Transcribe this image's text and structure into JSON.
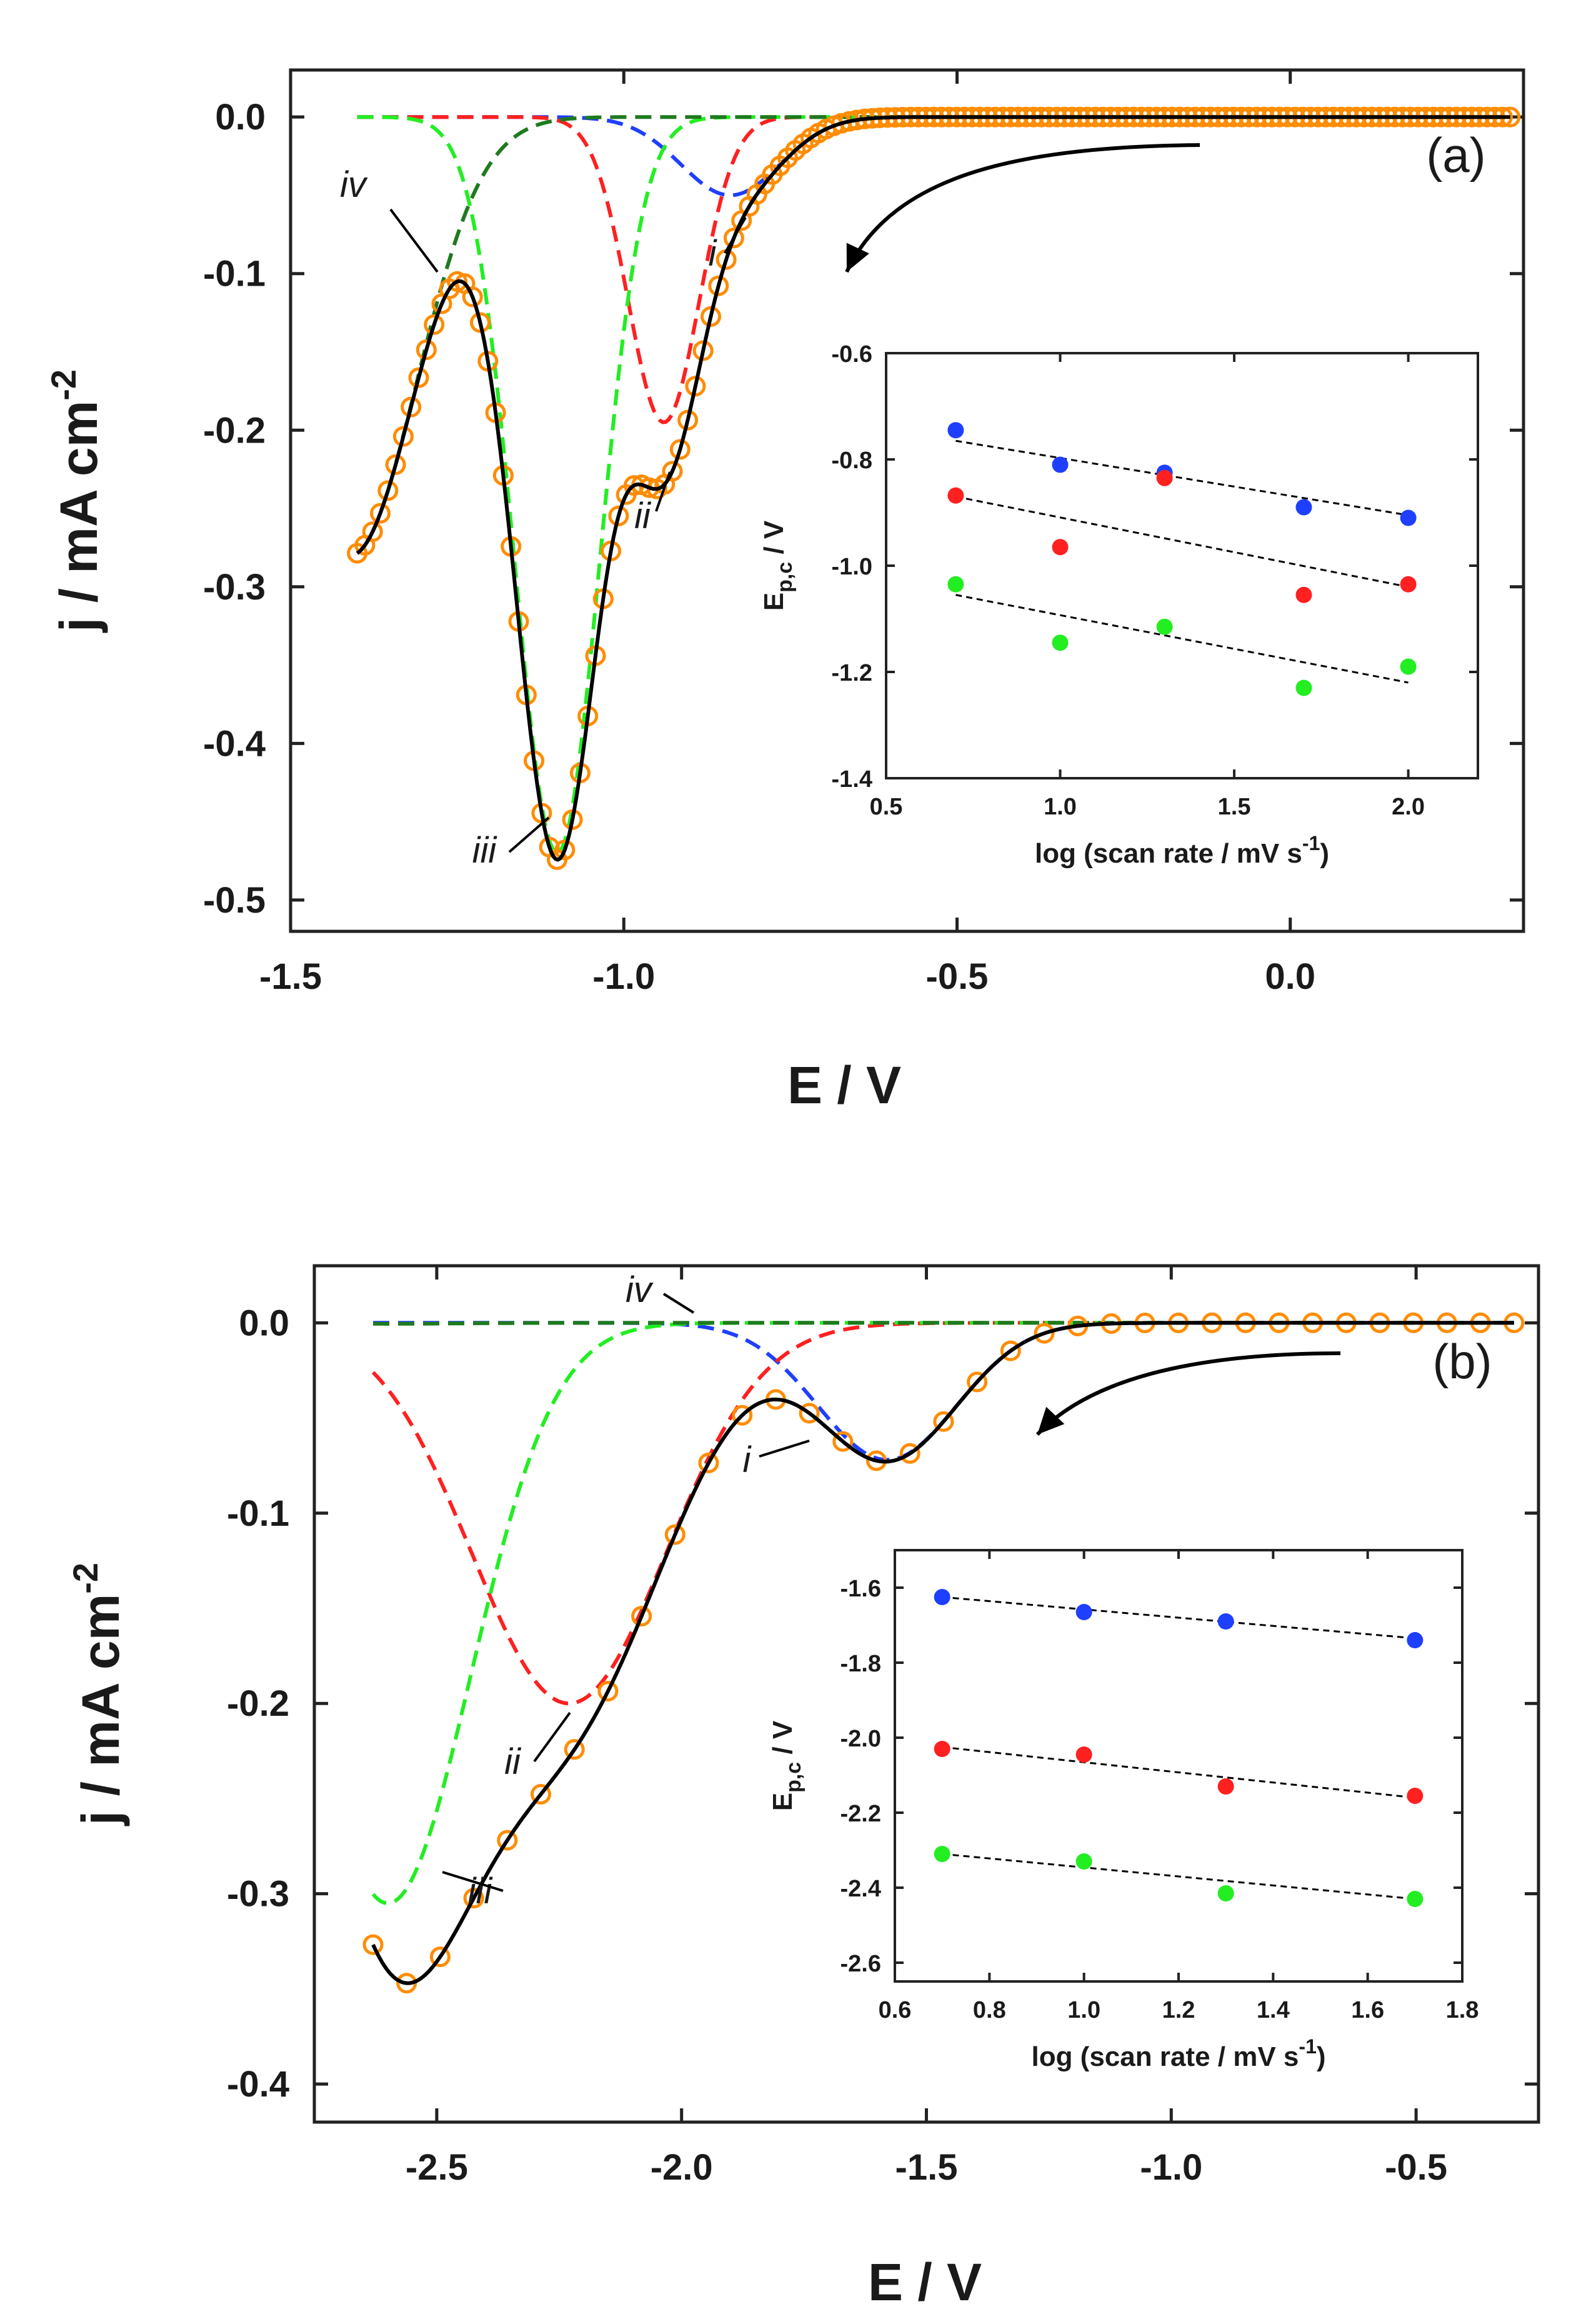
{
  "chart_data": [
    {
      "type": "line",
      "panel_label": "(a)",
      "xlabel": "E / V",
      "ylabel_main": "j / mA cm",
      "ylabel_sup": "-2",
      "xlim": [
        -1.5,
        0.35
      ],
      "ylim": [
        -0.52,
        0.03
      ],
      "xticks": [
        -1.5,
        -1.0,
        -0.5,
        0.0
      ],
      "xtick_labels": [
        "-1.5",
        "-1.0",
        "-0.5",
        "0.0"
      ],
      "yticks": [
        0.0,
        -0.1,
        -0.2,
        -0.3,
        -0.4,
        -0.5
      ],
      "ytick_labels": [
        "0.0",
        "-0.1",
        "-0.2",
        "-0.3",
        "-0.4",
        "-0.5"
      ],
      "colors": {
        "i": "#1f3fff",
        "ii": "#ff2020",
        "iii": "#22ee22",
        "iv": "#1e7a1e",
        "fit": "#000000",
        "exp": "#ff8c00"
      },
      "peaks": [
        {
          "id": "i",
          "label": "i",
          "center": -0.84,
          "width": 0.105,
          "amp": -0.05,
          "color": "#1f3fff"
        },
        {
          "id": "ii",
          "label": "ii",
          "center": -0.94,
          "width": 0.075,
          "amp": -0.195,
          "color": "#ff2020"
        },
        {
          "id": "iii",
          "label": "iii",
          "center": -1.1,
          "width": 0.09,
          "amp": -0.47,
          "color": "#22ee22"
        },
        {
          "id": "iv",
          "label": "iv",
          "center": -1.41,
          "width": 0.14,
          "amp": -0.28,
          "color": "#1e7a1e"
        }
      ],
      "fit_range": [
        -1.4,
        0.33
      ],
      "experimental_range": [
        -1.4,
        0.33
      ],
      "inset": {
        "xlabel_prefix": "log",
        "xlabel_paren": "(scan rate / mV s",
        "xlabel_sup": "-1",
        "xlabel_close": ")",
        "ylabel_main": "E",
        "ylabel_sub": "p,c",
        "ylabel_tail": " / V",
        "xlim": [
          0.5,
          2.2
        ],
        "ylim": [
          -1.4,
          -0.6
        ],
        "xticks": [
          0.5,
          1.0,
          1.5,
          2.0
        ],
        "xtick_labels": [
          "0.5",
          "1.0",
          "1.5",
          "2.0"
        ],
        "yticks": [
          -0.6,
          -0.8,
          -1.0,
          -1.2,
          -1.4
        ],
        "ytick_labels": [
          "-0.6",
          "-0.8",
          "-1.0",
          "-1.2",
          "-1.4"
        ],
        "series": [
          {
            "name": "i",
            "color": "#1f3fff",
            "x": [
              0.7,
              1.0,
              1.3,
              1.7,
              2.0
            ],
            "y": [
              -0.745,
              -0.81,
              -0.825,
              -0.89,
              -0.91
            ],
            "fit": [
              [
                0.7,
                -0.765
              ],
              [
                2.0,
                -0.905
              ]
            ]
          },
          {
            "name": "ii",
            "color": "#ff2020",
            "x": [
              0.7,
              1.0,
              1.3,
              1.7,
              2.0
            ],
            "y": [
              -0.868,
              -0.965,
              -0.835,
              -1.055,
              -1.035
            ],
            "fit": [
              [
                0.7,
                -0.87
              ],
              [
                2.0,
                -1.04
              ]
            ]
          },
          {
            "name": "iii",
            "color": "#22ee22",
            "x": [
              0.7,
              1.0,
              1.3,
              1.7,
              2.0
            ],
            "y": [
              -1.035,
              -1.145,
              -1.115,
              -1.23,
              -1.19
            ],
            "fit": [
              [
                0.7,
                -1.055
              ],
              [
                2.0,
                -1.22
              ]
            ]
          }
        ]
      }
    },
    {
      "type": "line",
      "panel_label": "(b)",
      "xlabel": "E / V",
      "ylabel_main": "j / mA cm",
      "ylabel_sup": "-2",
      "xlim": [
        -2.75,
        -0.25
      ],
      "ylim": [
        -0.42,
        0.03
      ],
      "xticks": [
        -2.5,
        -2.0,
        -1.5,
        -1.0,
        -0.5
      ],
      "xtick_labels": [
        "-2.5",
        "-2.0",
        "-1.5",
        "-1.0",
        "-0.5"
      ],
      "yticks": [
        0.0,
        -0.1,
        -0.2,
        -0.3,
        -0.4
      ],
      "ytick_labels": [
        "0.0",
        "-0.1",
        "-0.2",
        "-0.3",
        "-0.4"
      ],
      "colors": {
        "i": "#1f3fff",
        "ii": "#ff2020",
        "iii": "#22ee22",
        "iv": "#1e7a1e",
        "fit": "#000000",
        "exp": "#ff8c00"
      },
      "peaks": [
        {
          "id": "i",
          "label": "i",
          "center": -1.58,
          "width": 0.2,
          "amp": -0.072,
          "color": "#1f3fff"
        },
        {
          "id": "ii",
          "label": "ii",
          "center": -2.23,
          "width": 0.28,
          "amp": -0.2,
          "color": "#ff2020"
        },
        {
          "id": "iii",
          "label": "iii",
          "center": -2.6,
          "width": 0.24,
          "amp": -0.305,
          "color": "#22ee22"
        },
        {
          "id": "iv",
          "label": "iv",
          "center": -2.6,
          "width": 0.2,
          "amp": -0.0005,
          "color": "#1e7a1e"
        }
      ],
      "fit_range": [
        -2.63,
        -0.3
      ],
      "experimental_range": [
        -2.63,
        -0.3
      ],
      "inset": {
        "xlabel_prefix": "log",
        "xlabel_paren": "(scan rate / mV s",
        "xlabel_sup": "-1",
        "xlabel_close": ")",
        "ylabel_main": "E",
        "ylabel_sub": "p,c",
        "ylabel_tail": "  / V",
        "xlim": [
          0.6,
          1.8
        ],
        "ylim": [
          -2.65,
          -1.5
        ],
        "xticks": [
          0.6,
          0.8,
          1.0,
          1.2,
          1.4,
          1.6,
          1.8
        ],
        "xtick_labels": [
          "0.6",
          "0.8",
          "1.0",
          "1.2",
          "1.4",
          "1.6",
          "1.8"
        ],
        "yticks": [
          -1.6,
          -1.8,
          -2.0,
          -2.2,
          -2.4,
          -2.6
        ],
        "ytick_labels": [
          "-1.6",
          "-1.8",
          "-2.0",
          "-2.2",
          "-2.4",
          "-2.6"
        ],
        "series": [
          {
            "name": "i",
            "color": "#1f3fff",
            "x": [
              0.7,
              1.0,
              1.3,
              1.7
            ],
            "y": [
              -1.625,
              -1.665,
              -1.69,
              -1.74
            ],
            "fit": [
              [
                0.7,
                -1.625
              ],
              [
                1.7,
                -1.735
              ]
            ]
          },
          {
            "name": "ii",
            "color": "#ff2020",
            "x": [
              0.7,
              1.0,
              1.3,
              1.7
            ],
            "y": [
              -2.03,
              -2.045,
              -2.13,
              -2.155
            ],
            "fit": [
              [
                0.7,
                -2.025
              ],
              [
                1.7,
                -2.16
              ]
            ]
          },
          {
            "name": "iii",
            "color": "#22ee22",
            "x": [
              0.7,
              1.0,
              1.3,
              1.7
            ],
            "y": [
              -2.31,
              -2.33,
              -2.415,
              -2.43
            ],
            "fit": [
              [
                0.7,
                -2.31
              ],
              [
                1.7,
                -2.43
              ]
            ]
          }
        ]
      }
    }
  ]
}
